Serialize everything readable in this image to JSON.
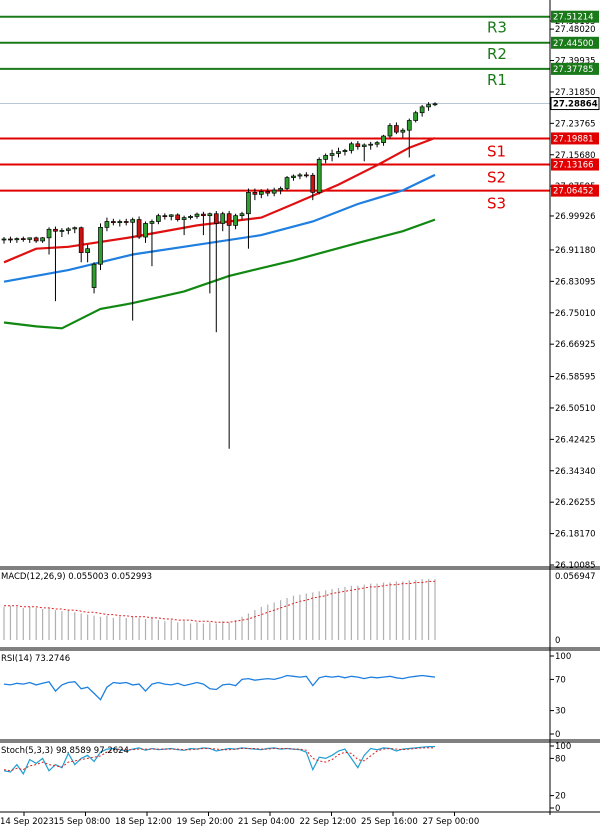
{
  "chart_data": {
    "type": "candlestick",
    "x_ticks": [
      "14 Sep 2023",
      "15 Sep 08:00",
      "18 Sep 12:00",
      "19 Sep 20:00",
      "21 Sep 04:00",
      "22 Sep 12:00",
      "25 Sep 16:00",
      "27 Sep 00:00"
    ],
    "price_ticks": [
      "27.50105",
      "27.48020",
      "27.39935",
      "27.31850",
      "27.23765",
      "27.15680",
      "27.07595",
      "26.99926",
      "26.91180",
      "26.83095",
      "26.75010",
      "26.66925",
      "26.58595",
      "26.50510",
      "26.42425",
      "26.34340",
      "26.26255",
      "26.18170",
      "26.10085"
    ],
    "ylim": [
      26.10085,
      27.55
    ],
    "current_price": "27.28864",
    "levels": [
      {
        "name": "R3",
        "value": "27.51214",
        "kind": "resistance",
        "color": "#1a7a1a"
      },
      {
        "name": "R2",
        "value": "27.44500",
        "kind": "resistance",
        "color": "#1a7a1a"
      },
      {
        "name": "R1",
        "value": "27.37785",
        "kind": "resistance",
        "color": "#1a7a1a"
      },
      {
        "name": "S1",
        "value": "27.19881",
        "kind": "support",
        "color": "#e00000"
      },
      {
        "name": "S2",
        "value": "27.13166",
        "kind": "support",
        "color": "#e00000"
      },
      {
        "name": "S3",
        "value": "27.06452",
        "kind": "support",
        "color": "#e00000"
      }
    ],
    "ma_lines": [
      {
        "color": "#e01010",
        "points": [
          [
            0,
            26.88
          ],
          [
            5,
            26.915
          ],
          [
            10,
            26.92
          ],
          [
            20,
            26.945
          ],
          [
            30,
            26.975
          ],
          [
            40,
            26.995
          ],
          [
            45,
            27.03
          ],
          [
            52,
            27.08
          ],
          [
            58,
            27.13
          ],
          [
            63,
            27.175
          ],
          [
            67,
            27.2
          ]
        ]
      },
      {
        "color": "#1e7fe0",
        "points": [
          [
            0,
            26.83
          ],
          [
            10,
            26.86
          ],
          [
            20,
            26.9
          ],
          [
            30,
            26.925
          ],
          [
            40,
            26.95
          ],
          [
            48,
            26.985
          ],
          [
            55,
            27.03
          ],
          [
            62,
            27.065
          ],
          [
            67,
            27.105
          ]
        ]
      },
      {
        "color": "#118811",
        "points": [
          [
            0,
            26.725
          ],
          [
            5,
            26.715
          ],
          [
            9,
            26.71
          ],
          [
            15,
            26.76
          ],
          [
            20,
            26.775
          ],
          [
            28,
            26.805
          ],
          [
            35,
            26.845
          ],
          [
            45,
            26.885
          ],
          [
            55,
            26.93
          ],
          [
            62,
            26.96
          ],
          [
            67,
            26.99
          ]
        ]
      }
    ],
    "candles": [
      [
        26.938,
        26.945,
        26.928,
        26.94
      ],
      [
        26.94,
        26.946,
        26.93,
        26.938
      ],
      [
        26.938,
        26.944,
        26.93,
        26.941
      ],
      [
        26.941,
        26.946,
        26.933,
        26.939
      ],
      [
        26.939,
        26.944,
        26.93,
        26.943
      ],
      [
        26.943,
        26.946,
        26.93,
        26.935
      ],
      [
        26.935,
        26.945,
        26.93,
        26.943
      ],
      [
        26.943,
        26.97,
        26.9,
        26.965
      ],
      [
        26.965,
        26.972,
        26.78,
        26.96
      ],
      [
        26.96,
        26.968,
        26.945,
        26.962
      ],
      [
        26.962,
        26.97,
        26.952,
        26.966
      ],
      [
        26.966,
        26.972,
        26.955,
        26.969
      ],
      [
        26.969,
        26.972,
        26.88,
        26.905
      ],
      [
        26.905,
        26.925,
        26.88,
        26.915
      ],
      [
        26.815,
        26.88,
        26.8,
        26.875
      ],
      [
        26.875,
        26.98,
        26.86,
        26.97
      ],
      [
        26.97,
        26.995,
        26.96,
        26.985
      ],
      [
        26.985,
        26.992,
        26.975,
        26.982
      ],
      [
        26.982,
        26.99,
        26.972,
        26.985
      ],
      [
        26.985,
        26.992,
        26.975,
        26.983
      ],
      [
        26.983,
        26.995,
        26.73,
        26.99
      ],
      [
        26.99,
        26.998,
        26.94,
        26.945
      ],
      [
        26.945,
        26.985,
        26.93,
        26.98
      ],
      [
        26.98,
        26.99,
        26.87,
        26.985
      ],
      [
        26.985,
        27.005,
        26.978,
        27.0
      ],
      [
        27.0,
        27.006,
        26.99,
        26.998
      ],
      [
        26.998,
        27.004,
        26.988,
        27.002
      ],
      [
        27.002,
        27.006,
        26.985,
        26.99
      ],
      [
        26.99,
        27.0,
        26.95,
        26.995
      ],
      [
        26.995,
        27.002,
        26.99,
        26.998
      ],
      [
        26.998,
        27.008,
        26.992,
        27.004
      ],
      [
        27.004,
        27.01,
        26.95,
        27.0
      ],
      [
        27.0,
        27.008,
        26.8,
        27.005
      ],
      [
        27.005,
        27.012,
        26.7,
        26.98
      ],
      [
        26.98,
        27.01,
        26.96,
        27.005
      ],
      [
        27.005,
        27.012,
        26.4,
        26.975
      ],
      [
        26.975,
        27.005,
        26.965,
        27.0
      ],
      [
        27.0,
        27.01,
        26.99,
        27.005
      ],
      [
        27.005,
        27.07,
        26.915,
        27.06
      ],
      [
        27.06,
        27.07,
        27.04,
        27.055
      ],
      [
        27.055,
        27.068,
        27.045,
        27.062
      ],
      [
        27.062,
        27.07,
        27.05,
        27.058
      ],
      [
        27.058,
        27.072,
        27.05,
        27.066
      ],
      [
        27.066,
        27.075,
        27.055,
        27.07
      ],
      [
        27.07,
        27.102,
        27.065,
        27.098
      ],
      [
        27.098,
        27.106,
        27.09,
        27.102
      ],
      [
        27.102,
        27.11,
        27.094,
        27.105
      ],
      [
        27.105,
        27.112,
        27.098,
        27.104
      ],
      [
        27.104,
        27.11,
        27.04,
        27.06
      ],
      [
        27.06,
        27.15,
        27.055,
        27.145
      ],
      [
        27.145,
        27.16,
        27.135,
        27.155
      ],
      [
        27.155,
        27.17,
        27.14,
        27.16
      ],
      [
        27.16,
        27.175,
        27.15,
        27.165
      ],
      [
        27.165,
        27.172,
        27.155,
        27.168
      ],
      [
        27.168,
        27.19,
        27.16,
        27.185
      ],
      [
        27.185,
        27.192,
        27.17,
        27.178
      ],
      [
        27.178,
        27.186,
        27.14,
        27.182
      ],
      [
        27.182,
        27.19,
        27.17,
        27.184
      ],
      [
        27.184,
        27.192,
        27.176,
        27.188
      ],
      [
        27.188,
        27.208,
        27.18,
        27.205
      ],
      [
        27.205,
        27.238,
        27.198,
        27.232
      ],
      [
        27.232,
        27.24,
        27.21,
        27.215
      ],
      [
        27.215,
        27.225,
        27.2,
        27.22
      ],
      [
        27.22,
        27.25,
        27.15,
        27.245
      ],
      [
        27.245,
        27.27,
        27.24,
        27.265
      ],
      [
        27.265,
        27.285,
        27.255,
        27.28
      ],
      [
        27.28,
        27.292,
        27.27,
        27.286
      ],
      [
        27.286,
        27.292,
        27.282,
        27.288
      ]
    ],
    "macd": {
      "label": "MACD(12,26,9) 0.055003 0.052993",
      "scale_max": "0.056947",
      "scale_zero": "0",
      "bars": [
        0.03,
        0.031,
        0.03,
        0.029,
        0.03,
        0.029,
        0.028,
        0.029,
        0.027,
        0.026,
        0.027,
        0.025,
        0.024,
        0.023,
        0.022,
        0.021,
        0.022,
        0.02,
        0.021,
        0.02,
        0.021,
        0.02,
        0.019,
        0.02,
        0.018,
        0.017,
        0.018,
        0.016,
        0.017,
        0.015,
        0.016,
        0.015,
        0.016,
        0.015,
        0.017,
        0.016,
        0.018,
        0.021,
        0.024,
        0.027,
        0.03,
        0.032,
        0.034,
        0.036,
        0.038,
        0.04,
        0.041,
        0.042,
        0.043,
        0.044,
        0.045,
        0.046,
        0.047,
        0.048,
        0.049,
        0.049,
        0.05,
        0.051,
        0.051,
        0.052,
        0.052,
        0.053,
        0.053,
        0.054,
        0.054,
        0.055,
        0.055,
        0.055
      ],
      "signal": [
        0.031,
        0.031,
        0.031,
        0.03,
        0.03,
        0.03,
        0.029,
        0.029,
        0.028,
        0.028,
        0.027,
        0.027,
        0.026,
        0.025,
        0.025,
        0.024,
        0.023,
        0.023,
        0.022,
        0.022,
        0.021,
        0.021,
        0.021,
        0.02,
        0.02,
        0.019,
        0.019,
        0.018,
        0.018,
        0.018,
        0.017,
        0.017,
        0.017,
        0.016,
        0.016,
        0.016,
        0.017,
        0.018,
        0.019,
        0.021,
        0.023,
        0.025,
        0.027,
        0.029,
        0.031,
        0.033,
        0.035,
        0.036,
        0.038,
        0.039,
        0.04,
        0.042,
        0.043,
        0.044,
        0.045,
        0.046,
        0.047,
        0.048,
        0.048,
        0.049,
        0.05,
        0.05,
        0.051,
        0.051,
        0.052,
        0.052,
        0.053,
        0.053
      ]
    },
    "rsi": {
      "label": "RSI(14) 73.2746",
      "levels": [
        "100",
        "70",
        "30",
        "0"
      ],
      "values": [
        64,
        63,
        65,
        64,
        66,
        63,
        65,
        67,
        55,
        63,
        66,
        67,
        58,
        60,
        52,
        44,
        60,
        66,
        65,
        66,
        63,
        64,
        55,
        64,
        66,
        64,
        63,
        65,
        62,
        64,
        66,
        64,
        58,
        57,
        63,
        64,
        62,
        70,
        71,
        69,
        70,
        71,
        70,
        72,
        75,
        74,
        73,
        74,
        62,
        72,
        74,
        73,
        74,
        72,
        74,
        73,
        71,
        73,
        72,
        73,
        74,
        72,
        71,
        73,
        74,
        75,
        74,
        73
      ]
    },
    "stoch": {
      "label": "Stoch(5,3,3) 98.8589 97.2624",
      "levels": [
        "100",
        "80",
        "20",
        "0"
      ],
      "k": [
        60,
        58,
        70,
        55,
        78,
        72,
        80,
        60,
        70,
        65,
        88,
        70,
        80,
        85,
        75,
        90,
        95,
        96,
        94,
        92,
        95,
        97,
        93,
        96,
        94,
        95,
        96,
        94,
        93,
        96,
        95,
        97,
        96,
        92,
        94,
        96,
        95,
        97,
        96,
        95,
        94,
        96,
        97,
        95,
        96,
        95,
        94,
        90,
        62,
        82,
        80,
        85,
        92,
        95,
        80,
        65,
        85,
        96,
        94,
        97,
        96,
        92,
        95,
        96,
        97,
        98,
        99,
        99
      ],
      "d": [
        62,
        60,
        64,
        62,
        68,
        70,
        74,
        70,
        68,
        66,
        74,
        76,
        78,
        80,
        82,
        84,
        90,
        94,
        95,
        94,
        94,
        95,
        95,
        95,
        95,
        95,
        95,
        95,
        94,
        94,
        95,
        96,
        96,
        95,
        94,
        94,
        95,
        96,
        96,
        96,
        95,
        95,
        96,
        96,
        96,
        95,
        95,
        93,
        80,
        76,
        74,
        78,
        86,
        90,
        88,
        78,
        76,
        84,
        92,
        95,
        96,
        95,
        94,
        95,
        96,
        97,
        97,
        97
      ]
    }
  }
}
